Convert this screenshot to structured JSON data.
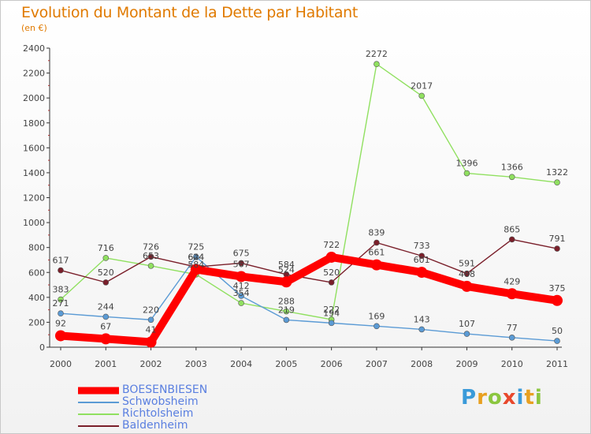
{
  "header": {
    "title": "Evolution du Montant de la Dette par Habitant",
    "subtitle": "(en €)"
  },
  "logo": {
    "text": "Proxiti",
    "letters": [
      {
        "char": "P",
        "color": "#3a9ad9"
      },
      {
        "char": "r",
        "color": "#e8a020"
      },
      {
        "char": "o",
        "color": "#8bc63f"
      },
      {
        "char": "x",
        "color": "#e8482c"
      },
      {
        "char": "i",
        "color": "#3a9ad9"
      },
      {
        "char": "t",
        "color": "#e8a020"
      },
      {
        "char": "i",
        "color": "#8bc63f"
      }
    ]
  },
  "chart_data": {
    "type": "line",
    "title": "Evolution du Montant de la Dette par Habitant",
    "subtitle": "(en €)",
    "xlabel": "",
    "ylabel": "",
    "x": [
      "2000",
      "2001",
      "2002",
      "2003",
      "2004",
      "2005",
      "2006",
      "2007",
      "2008",
      "2009",
      "2010",
      "2011"
    ],
    "ylim": [
      0,
      2400
    ],
    "yticks": [
      0,
      200,
      400,
      600,
      800,
      1000,
      1200,
      1400,
      1600,
      1800,
      2000,
      2200,
      2400
    ],
    "grid": false,
    "legend_position": "bottom-left",
    "series": [
      {
        "name": "BOESENBIESEN",
        "color": "#ff0000",
        "values": [
          92,
          67,
          41,
          624,
          567,
          524,
          722,
          661,
          601,
          488,
          429,
          375
        ]
      },
      {
        "name": "Schwobsheim",
        "color": "#5b9bd5",
        "values": [
          271,
          244,
          220,
          725,
          412,
          219,
          194,
          169,
          143,
          107,
          77,
          50
        ]
      },
      {
        "name": "Richtolsheim",
        "color": "#90e060",
        "values": [
          383,
          716,
          653,
          584,
          354,
          288,
          222,
          2272,
          2017,
          1396,
          1366,
          1322
        ]
      },
      {
        "name": "Baldenheim",
        "color": "#7a1f2a",
        "values": [
          617,
          520,
          726,
          644,
          675,
          584,
          520,
          839,
          733,
          591,
          865,
          791
        ]
      }
    ]
  }
}
